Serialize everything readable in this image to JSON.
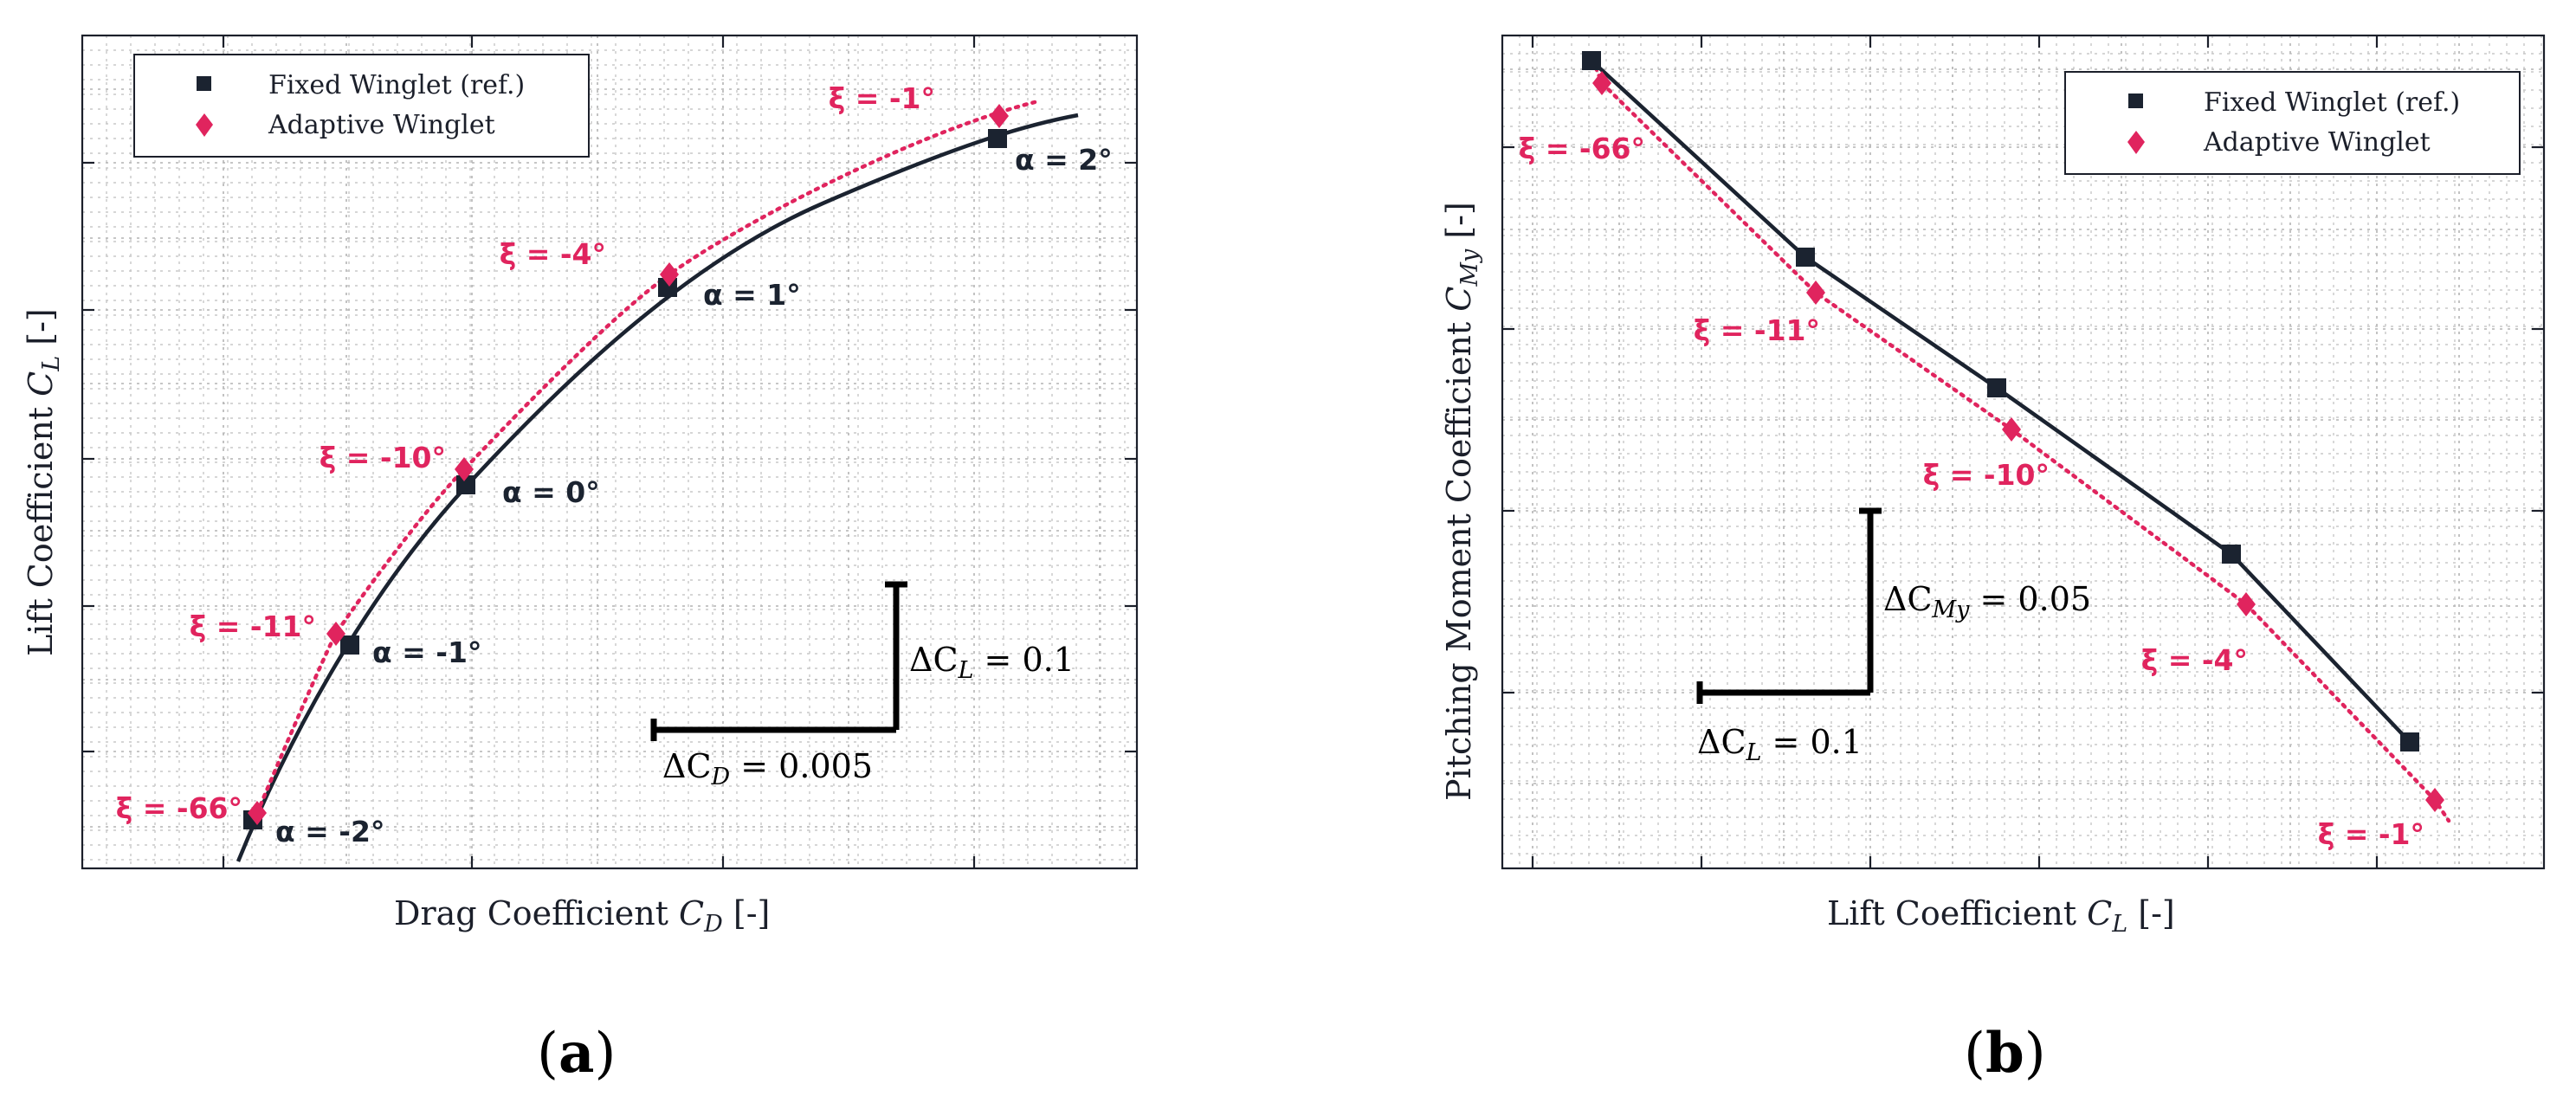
{
  "panels": [
    {
      "id": "a",
      "label_open": "(",
      "label_letter": "a",
      "label_close": ")",
      "xlabel": "Drag Coefficient",
      "xsym": "C",
      "xsub": "D",
      "xunit": "[-]",
      "ylabel": "Lift Coefficient",
      "ysym": "C",
      "ysub": "L",
      "yunit": "[-]",
      "legend": [
        "Fixed Winglet (ref.)",
        "Adaptive Winglet"
      ],
      "scale_h_text": "ΔC",
      "scale_h_sub": "D",
      "scale_h_val": " = 0.005",
      "scale_v_text": "ΔC",
      "scale_v_sub": "L",
      "scale_v_val": " = 0.1"
    },
    {
      "id": "b",
      "label_open": "(",
      "label_letter": "b",
      "label_close": ")",
      "xlabel": "Lift Coefficient",
      "xsym": "C",
      "xsub": "L",
      "xunit": "[-]",
      "ylabel": "Pitching Moment Coefficient",
      "ysym": "C",
      "ysub": "My",
      "yunit": "[-]",
      "legend": [
        "Fixed Winglet (ref.)",
        "Adaptive Winglet"
      ],
      "scale_h_text": "ΔC",
      "scale_h_sub": "L",
      "scale_h_val": " = 0.1",
      "scale_v_text": "ΔC",
      "scale_v_sub": "My",
      "scale_v_val": " = 0.05"
    }
  ],
  "colors": {
    "fixed": "#1b2330",
    "adaptive": "#e0245e"
  },
  "chart_data": [
    {
      "type": "line",
      "title": "",
      "xlabel": "Drag Coefficient C_D [-]",
      "ylabel": "Lift Coefficient C_L [-]",
      "grid": true,
      "legend_position": "top-left",
      "xlim": [
        0.0,
        0.019
      ],
      "ylim": [
        -0.075,
        0.875
      ],
      "series": [
        {
          "name": "Fixed Winglet (ref.)",
          "marker": "square",
          "x": [
            0.0033,
            0.0054,
            0.0079,
            0.0122,
            0.0192
          ],
          "y": [
            0.0,
            0.127,
            0.24,
            0.38,
            0.5
          ],
          "labels": [
            "α = -2°",
            "α = -1°",
            "α = 0°",
            "α = 1°",
            "α = 2°"
          ]
        },
        {
          "name": "Adaptive Winglet",
          "marker": "diamond",
          "x": [
            0.0035,
            0.0052,
            0.0079,
            0.0123,
            0.0193
          ],
          "y": [
            0.008,
            0.136,
            0.252,
            0.391,
            0.517
          ],
          "labels": [
            "ξ = -66°",
            "ξ = -11°",
            "ξ = -10°",
            "ξ = -4°",
            "ξ = -1°"
          ]
        }
      ],
      "fit_curve": {
        "series": "Fixed Winglet (ref.)",
        "x": [
          0.003,
          0.0033,
          0.0054,
          0.0079,
          0.0122,
          0.0192,
          0.021
        ],
        "y": [
          -0.03,
          0.0,
          0.127,
          0.24,
          0.38,
          0.5,
          0.52
        ]
      }
    },
    {
      "type": "line",
      "title": "",
      "xlabel": "Lift Coefficient C_L [-]",
      "ylabel": "Pitching Moment Coefficient C_My [-]",
      "grid": true,
      "legend_position": "top-right",
      "xlim": [
        -0.17,
        1.0
      ],
      "ylim": [
        -0.235,
        0.004
      ],
      "series": [
        {
          "name": "Fixed Winglet (ref.)",
          "marker": "square",
          "x": [
            0.0,
            0.127,
            0.24,
            0.38,
            0.5
          ],
          "y": [
            0.0,
            -0.054,
            -0.09,
            -0.135,
            -0.187
          ],
          "labels": [
            "",
            "",
            "",
            "",
            ""
          ]
        },
        {
          "name": "Adaptive Winglet",
          "marker": "diamond",
          "x": [
            0.008,
            0.136,
            0.252,
            0.391,
            0.517
          ],
          "y": [
            -0.006,
            -0.063,
            -0.101,
            -0.148,
            -0.203
          ],
          "labels": [
            "ξ = -66°",
            "ξ = -11°",
            "ξ = -10°",
            "ξ = -4°",
            "ξ = -1°"
          ]
        }
      ]
    }
  ]
}
